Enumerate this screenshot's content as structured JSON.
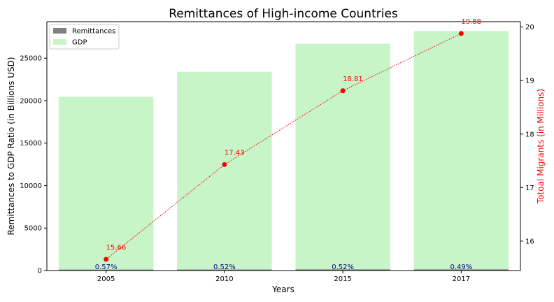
{
  "chart_data": {
    "type": "bar",
    "title": "Remittances of High-income Countries",
    "xlabel": "Years",
    "ylabel": "Remittances to GDP Ratio (in Billions USD)",
    "ylabel_right": "Totoal Migrants (in Millions)",
    "categories": [
      "2005",
      "2010",
      "2015",
      "2017"
    ],
    "ylim": [
      0,
      29300
    ],
    "y_ticks": [
      0,
      5000,
      10000,
      15000,
      20000,
      25000
    ],
    "y2lim": [
      15.45,
      20.1
    ],
    "y2_ticks": [
      16,
      17,
      18,
      19,
      20
    ],
    "series": [
      {
        "name": "Remittances",
        "values": [
          116,
          122,
          139,
          139
        ],
        "color": "#808080"
      },
      {
        "name": "GDP",
        "values": [
          20450,
          23400,
          26700,
          28200
        ],
        "color": "#c8f5c8"
      }
    ],
    "bar_labels": [
      "0.57%",
      "0.52%",
      "0.52%",
      "0.49%"
    ],
    "line": {
      "name": "Totoal Migrants (in Millions)",
      "values": [
        15.66,
        17.43,
        18.81,
        19.88
      ],
      "labels": [
        "15.66",
        "17.43",
        "18.81",
        "19.88"
      ],
      "color": "#ff0000",
      "style": "dotted"
    },
    "legend": {
      "position": "top-left",
      "entries": [
        "Remittances",
        "GDP"
      ]
    },
    "grid": false
  }
}
